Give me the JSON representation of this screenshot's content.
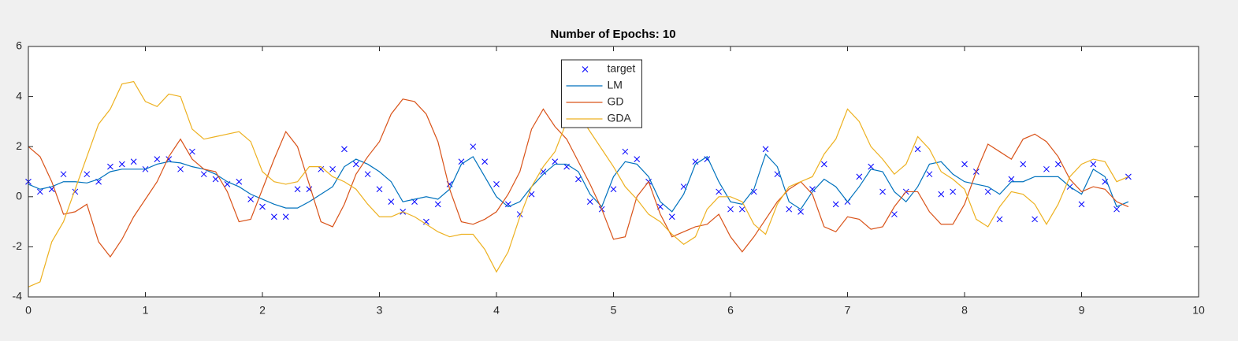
{
  "chart_data": {
    "type": "line",
    "title": "Number of Epochs: 10",
    "x": [
      0,
      0.1,
      0.2,
      0.3,
      0.4,
      0.5,
      0.6,
      0.7,
      0.8,
      0.9,
      1,
      1.1,
      1.2,
      1.3,
      1.4,
      1.5,
      1.6,
      1.7,
      1.8,
      1.9,
      2,
      2.1,
      2.2,
      2.3,
      2.4,
      2.5,
      2.6,
      2.7,
      2.8,
      2.9,
      3,
      3.1,
      3.2,
      3.3,
      3.4,
      3.5,
      3.6,
      3.7,
      3.8,
      3.9,
      4,
      4.1,
      4.2,
      4.3,
      4.4,
      4.5,
      4.6,
      4.7,
      4.8,
      4.9,
      5,
      5.1,
      5.2,
      5.3,
      5.4,
      5.5,
      5.6,
      5.7,
      5.8,
      5.9,
      6,
      6.1,
      6.2,
      6.3,
      6.4,
      6.5,
      6.6,
      6.7,
      6.8,
      6.9,
      7,
      7.1,
      7.2,
      7.3,
      7.4,
      7.5,
      7.6,
      7.7,
      7.8,
      7.9,
      8,
      8.1,
      8.2,
      8.3,
      8.4,
      8.5,
      8.6,
      8.7,
      8.8,
      8.9,
      9,
      9.1,
      9.2,
      9.3,
      9.4
    ],
    "series": [
      {
        "name": "target",
        "color": "#0000ff",
        "marker": "x",
        "values": [
          0.6,
          0.2,
          0.3,
          0.9,
          0.2,
          0.9,
          0.6,
          1.2,
          1.3,
          1.4,
          1.1,
          1.5,
          1.5,
          1.1,
          1.8,
          0.9,
          0.7,
          0.5,
          0.6,
          -0.1,
          -0.4,
          -0.8,
          -0.8,
          0.3,
          0.3,
          1.1,
          1.1,
          1.9,
          1.3,
          0.9,
          0.3,
          -0.2,
          -0.6,
          -0.2,
          -1.0,
          -0.3,
          0.5,
          1.4,
          2.0,
          1.4,
          0.5,
          -0.3,
          -0.7,
          0.1,
          1.0,
          1.4,
          1.2,
          0.7,
          -0.2,
          -0.5,
          0.3,
          1.8,
          1.5,
          0.6,
          -0.4,
          -0.8,
          0.4,
          1.4,
          1.5,
          0.2,
          -0.5,
          -0.5,
          0.2,
          1.9,
          0.9,
          -0.5,
          -0.6,
          0.3,
          1.3,
          -0.3,
          -0.2,
          0.8,
          1.2,
          0.2,
          -0.7,
          0.2,
          1.9,
          0.9,
          0.1,
          0.2,
          1.3,
          1.0,
          0.2,
          -0.9,
          0.7,
          1.3,
          -0.9,
          1.1,
          1.3,
          0.4,
          -0.3,
          1.3,
          0.6,
          -0.5,
          0.8
        ]
      },
      {
        "name": "LM",
        "color": "#0072bd",
        "marker": "line",
        "values": [
          0.5,
          0.3,
          0.4,
          0.6,
          0.6,
          0.55,
          0.7,
          1.0,
          1.1,
          1.1,
          1.1,
          1.3,
          1.4,
          1.35,
          1.2,
          1.1,
          0.9,
          0.6,
          0.4,
          0.1,
          -0.1,
          -0.3,
          -0.45,
          -0.45,
          -0.2,
          0.1,
          0.4,
          1.2,
          1.5,
          1.3,
          1.0,
          0.6,
          -0.2,
          -0.1,
          0.0,
          -0.1,
          0.3,
          1.3,
          1.6,
          0.8,
          0.0,
          -0.4,
          -0.2,
          0.4,
          0.9,
          1.3,
          1.3,
          1.0,
          0.1,
          -0.4,
          0.8,
          1.4,
          1.3,
          0.8,
          -0.2,
          -0.6,
          0.1,
          1.3,
          1.6,
          0.6,
          -0.2,
          -0.3,
          0.3,
          1.7,
          1.2,
          -0.2,
          -0.5,
          0.2,
          0.7,
          0.4,
          -0.2,
          0.4,
          1.1,
          1.0,
          0.2,
          -0.2,
          0.4,
          1.3,
          1.4,
          0.9,
          0.6,
          0.5,
          0.4,
          0.1,
          0.6,
          0.6,
          0.8,
          0.8,
          0.8,
          0.4,
          0.1,
          1.1,
          0.8,
          -0.4,
          -0.2
        ]
      },
      {
        "name": "GD",
        "color": "#d95319",
        "marker": "line",
        "values": [
          2.0,
          1.6,
          0.6,
          -0.7,
          -0.6,
          -0.3,
          -1.8,
          -2.4,
          -1.7,
          -0.8,
          -0.1,
          0.6,
          1.6,
          2.3,
          1.5,
          1.1,
          1.0,
          0.2,
          -1.0,
          -0.9,
          0.3,
          1.5,
          2.6,
          2.0,
          0.5,
          -1.0,
          -1.2,
          -0.3,
          0.9,
          1.6,
          2.2,
          3.3,
          3.9,
          3.8,
          3.3,
          2.2,
          0.3,
          -1.0,
          -1.1,
          -0.9,
          -0.6,
          0.1,
          1.0,
          2.7,
          3.5,
          2.8,
          2.3,
          1.4,
          0.5,
          -0.5,
          -1.7,
          -1.6,
          0.0,
          0.6,
          -0.7,
          -1.6,
          -1.4,
          -1.2,
          -1.1,
          -0.7,
          -1.6,
          -2.2,
          -1.6,
          -0.9,
          -0.2,
          0.3,
          0.6,
          0.1,
          -1.2,
          -1.4,
          -0.8,
          -0.9,
          -1.3,
          -1.2,
          -0.4,
          0.2,
          0.2,
          -0.6,
          -1.1,
          -1.1,
          -0.3,
          1.0,
          2.1,
          1.8,
          1.5,
          2.3,
          2.5,
          2.2,
          1.6,
          0.7,
          0.2,
          0.4,
          0.3,
          -0.2,
          -0.4
        ]
      },
      {
        "name": "GDA",
        "color": "#edb120",
        "marker": "line",
        "values": [
          -3.6,
          -3.4,
          -1.8,
          -1.0,
          0.3,
          1.6,
          2.9,
          3.5,
          4.5,
          4.6,
          3.8,
          3.6,
          4.1,
          4.0,
          2.7,
          2.3,
          2.4,
          2.5,
          2.6,
          2.2,
          1.0,
          0.6,
          0.5,
          0.6,
          1.2,
          1.2,
          0.8,
          0.6,
          0.3,
          -0.3,
          -0.8,
          -0.8,
          -0.6,
          -0.8,
          -1.1,
          -1.4,
          -1.6,
          -1.5,
          -1.5,
          -2.1,
          -3.0,
          -2.2,
          -0.8,
          0.4,
          1.2,
          1.8,
          3.0,
          3.3,
          2.6,
          1.9,
          1.2,
          0.4,
          -0.1,
          -0.7,
          -1.0,
          -1.5,
          -1.9,
          -1.6,
          -0.5,
          0.0,
          0.0,
          -0.2,
          -1.1,
          -1.5,
          -0.3,
          0.4,
          0.6,
          0.8,
          1.7,
          2.3,
          3.5,
          3.0,
          2.0,
          1.5,
          0.9,
          1.3,
          2.4,
          1.9,
          1.0,
          0.7,
          0.3,
          -0.9,
          -1.2,
          -0.4,
          0.2,
          0.1,
          -0.3,
          -1.1,
          -0.3,
          0.8,
          1.3,
          1.5,
          1.4,
          0.6,
          0.8
        ]
      }
    ],
    "xlim": [
      0,
      10
    ],
    "ylim": [
      -4,
      6
    ],
    "xticks": [
      0,
      1,
      2,
      3,
      4,
      5,
      6,
      7,
      8,
      9,
      10
    ],
    "yticks": [
      -4,
      -2,
      0,
      2,
      4,
      6
    ],
    "legend": "north"
  }
}
